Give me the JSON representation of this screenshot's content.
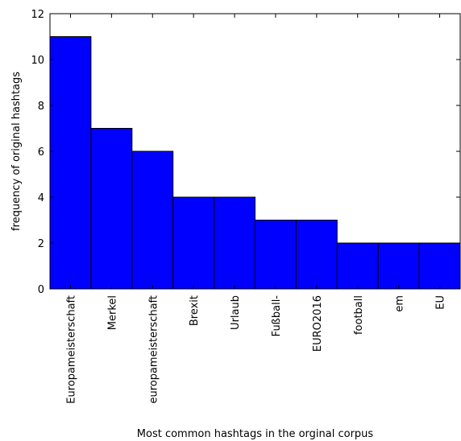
{
  "chart_data": {
    "type": "bar",
    "title": "",
    "xlabel": "Most common hashtags in the orginal corpus",
    "ylabel": "frequency of original hashtags",
    "categories": [
      "Europameisterschaft",
      "Merkel",
      "europameisterschaft",
      "Brexit",
      "Urlaub",
      "Fußball-",
      "EURO2016",
      "football",
      "em",
      "EU"
    ],
    "values": [
      11,
      7,
      6,
      4,
      4,
      3,
      3,
      2,
      2,
      2
    ],
    "ylim": [
      0,
      12
    ],
    "yticks": [
      0,
      2,
      4,
      6,
      8,
      10,
      12
    ],
    "bar_color": "#0000ff",
    "edge_color": "#000000",
    "grid": false,
    "legend": "none"
  }
}
